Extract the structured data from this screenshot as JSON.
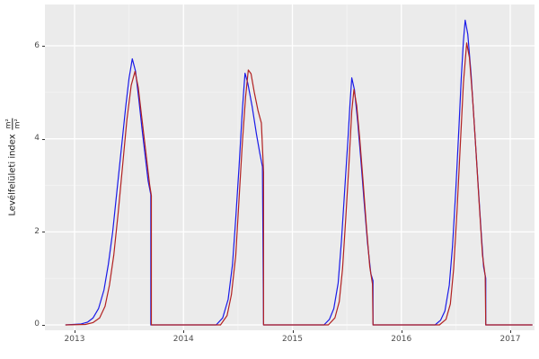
{
  "y_axis": {
    "title": "Levélfelületi index",
    "fraction_numerator": "m²",
    "fraction_denominator": "m²",
    "tick_labels": [
      "0",
      "2",
      "4",
      "6"
    ],
    "tick_values": [
      0,
      2,
      4,
      6
    ],
    "minor_values": [
      1,
      3,
      5
    ]
  },
  "x_axis": {
    "tick_labels": [
      "2013",
      "2014",
      "2015",
      "2016",
      "2017"
    ],
    "tick_values": [
      2013,
      2014,
      2015,
      2016,
      2017
    ],
    "minor_values": [
      2013.5,
      2014.5,
      2015.5,
      2016.5
    ]
  },
  "style": {
    "panel_bg": "#EBEBEB",
    "grid_major": "#FFFFFF",
    "grid_minor": "#F4F4F4",
    "series_blue": "#1A1AE8",
    "series_red": "#B22222",
    "tick_label_color": "#4D4D4D",
    "axis_title_color": "#1A1A1A",
    "tick_mark_color": "#333333"
  },
  "chart_data": {
    "type": "line",
    "title": "",
    "xlabel": "",
    "ylabel": "Levélfelületi index m²/m²",
    "legend": "none",
    "grid": "on",
    "x_domain": [
      2012.7278,
      2017.2226
    ],
    "y_domain": [
      -0.1158,
      6.8879
    ],
    "x_ticks": [
      2013,
      2014,
      2015,
      2016,
      2017
    ],
    "y_ticks": [
      0,
      2,
      4,
      6
    ],
    "series": [
      {
        "name": "series-blue",
        "color_key": "series_blue",
        "points": [
          [
            2012.92,
            0
          ],
          [
            2013.06,
            0.02
          ],
          [
            2013.12,
            0.06
          ],
          [
            2013.17,
            0.15
          ],
          [
            2013.22,
            0.35
          ],
          [
            2013.27,
            0.75
          ],
          [
            2013.31,
            1.3
          ],
          [
            2013.35,
            2.0
          ],
          [
            2013.39,
            2.9
          ],
          [
            2013.43,
            3.8
          ],
          [
            2013.47,
            4.7
          ],
          [
            2013.5,
            5.3
          ],
          [
            2013.53,
            5.72
          ],
          [
            2013.56,
            5.45
          ],
          [
            2013.59,
            4.85
          ],
          [
            2013.62,
            4.2
          ],
          [
            2013.65,
            3.6
          ],
          [
            2013.675,
            3.1
          ],
          [
            2013.7,
            2.8
          ],
          [
            2013.7,
            0
          ],
          [
            2014.3,
            0
          ],
          [
            2014.36,
            0.15
          ],
          [
            2014.41,
            0.55
          ],
          [
            2014.45,
            1.3
          ],
          [
            2014.48,
            2.3
          ],
          [
            2014.51,
            3.4
          ],
          [
            2014.54,
            4.6
          ],
          [
            2014.555,
            5.1
          ],
          [
            2014.565,
            5.41
          ],
          [
            2014.59,
            5.2
          ],
          [
            2014.63,
            4.7
          ],
          [
            2014.67,
            4.1
          ],
          [
            2014.7,
            3.7
          ],
          [
            2014.725,
            3.4
          ],
          [
            2014.735,
            0
          ],
          [
            2015.29,
            0
          ],
          [
            2015.34,
            0.12
          ],
          [
            2015.38,
            0.35
          ],
          [
            2015.42,
            0.9
          ],
          [
            2015.45,
            1.8
          ],
          [
            2015.48,
            2.9
          ],
          [
            2015.51,
            4.0
          ],
          [
            2015.53,
            4.8
          ],
          [
            2015.545,
            5.31
          ],
          [
            2015.57,
            5.05
          ],
          [
            2015.6,
            4.35
          ],
          [
            2015.63,
            3.5
          ],
          [
            2015.66,
            2.6
          ],
          [
            2015.69,
            1.75
          ],
          [
            2015.72,
            1.1
          ],
          [
            2015.74,
            0.95
          ],
          [
            2015.74,
            0
          ],
          [
            2016.31,
            0
          ],
          [
            2016.36,
            0.1
          ],
          [
            2016.4,
            0.3
          ],
          [
            2016.44,
            0.85
          ],
          [
            2016.47,
            1.7
          ],
          [
            2016.5,
            2.9
          ],
          [
            2016.53,
            4.3
          ],
          [
            2016.55,
            5.3
          ],
          [
            2016.57,
            6.1
          ],
          [
            2016.586,
            6.55
          ],
          [
            2016.61,
            6.25
          ],
          [
            2016.64,
            5.4
          ],
          [
            2016.67,
            4.3
          ],
          [
            2016.7,
            3.2
          ],
          [
            2016.73,
            2.1
          ],
          [
            2016.755,
            1.25
          ],
          [
            2016.775,
            1.0
          ],
          [
            2016.775,
            0
          ],
          [
            2017.2,
            0
          ]
        ]
      },
      {
        "name": "series-red",
        "color_key": "series_red",
        "points": [
          [
            2012.92,
            0
          ],
          [
            2013.1,
            0.01
          ],
          [
            2013.17,
            0.05
          ],
          [
            2013.23,
            0.15
          ],
          [
            2013.28,
            0.4
          ],
          [
            2013.32,
            0.85
          ],
          [
            2013.36,
            1.5
          ],
          [
            2013.4,
            2.4
          ],
          [
            2013.44,
            3.4
          ],
          [
            2013.48,
            4.4
          ],
          [
            2013.52,
            5.15
          ],
          [
            2013.555,
            5.45
          ],
          [
            2013.585,
            5.1
          ],
          [
            2013.615,
            4.5
          ],
          [
            2013.645,
            3.9
          ],
          [
            2013.67,
            3.4
          ],
          [
            2013.69,
            3.0
          ],
          [
            2013.705,
            2.78
          ],
          [
            2013.705,
            0
          ],
          [
            2014.34,
            0
          ],
          [
            2014.4,
            0.2
          ],
          [
            2014.44,
            0.65
          ],
          [
            2014.48,
            1.5
          ],
          [
            2014.51,
            2.7
          ],
          [
            2014.54,
            3.9
          ],
          [
            2014.57,
            4.9
          ],
          [
            2014.595,
            5.48
          ],
          [
            2014.62,
            5.4
          ],
          [
            2014.65,
            5.0
          ],
          [
            2014.685,
            4.6
          ],
          [
            2014.715,
            4.34
          ],
          [
            2014.735,
            3.28
          ],
          [
            2014.735,
            0
          ],
          [
            2015.33,
            0
          ],
          [
            2015.39,
            0.15
          ],
          [
            2015.43,
            0.5
          ],
          [
            2015.46,
            1.2
          ],
          [
            2015.49,
            2.3
          ],
          [
            2015.52,
            3.5
          ],
          [
            2015.545,
            4.6
          ],
          [
            2015.565,
            5.06
          ],
          [
            2015.59,
            4.72
          ],
          [
            2015.62,
            3.95
          ],
          [
            2015.65,
            3.05
          ],
          [
            2015.68,
            2.1
          ],
          [
            2015.71,
            1.25
          ],
          [
            2015.735,
            0.88
          ],
          [
            2015.74,
            0
          ],
          [
            2016.35,
            0
          ],
          [
            2016.41,
            0.12
          ],
          [
            2016.45,
            0.45
          ],
          [
            2016.48,
            1.2
          ],
          [
            2016.51,
            2.4
          ],
          [
            2016.54,
            3.8
          ],
          [
            2016.57,
            5.2
          ],
          [
            2016.6,
            6.06
          ],
          [
            2016.625,
            5.75
          ],
          [
            2016.655,
            4.85
          ],
          [
            2016.685,
            3.75
          ],
          [
            2016.715,
            2.6
          ],
          [
            2016.745,
            1.5
          ],
          [
            2016.77,
            1.05
          ],
          [
            2016.775,
            0
          ],
          [
            2017.2,
            0
          ]
        ]
      }
    ]
  }
}
